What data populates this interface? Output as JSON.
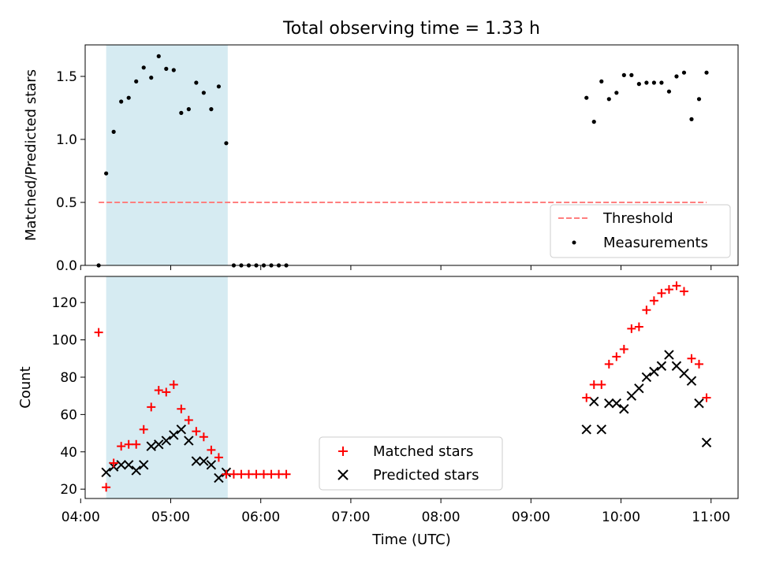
{
  "chart_data": [
    {
      "type": "scatter",
      "title": "Total observing time = 1.33 h",
      "ylabel": "Matched/Predicted stars",
      "xlabel": "",
      "xlim": [
        "04:03",
        "11:18"
      ],
      "ylim": [
        0,
        1.75
      ],
      "yticks": [
        "0.0",
        "0.5",
        "1.0",
        "1.5"
      ],
      "shaded_interval": [
        "04:17",
        "05:38"
      ],
      "threshold": {
        "name": "Threshold",
        "value": 0.5,
        "x_range": [
          "04:12",
          "10:57"
        ],
        "color": "#ff7f7f"
      },
      "series": [
        {
          "name": "Measurements",
          "color": "#000000",
          "x": [
            "04:12",
            "04:17",
            "04:22",
            "04:27",
            "04:32",
            "04:37",
            "04:42",
            "04:47",
            "04:52",
            "04:57",
            "05:02",
            "05:07",
            "05:12",
            "05:17",
            "05:22",
            "05:27",
            "05:32",
            "05:37",
            "05:42",
            "05:47",
            "05:52",
            "05:57",
            "06:02",
            "06:07",
            "06:12",
            "06:17",
            "09:37",
            "09:42",
            "09:47",
            "09:52",
            "09:57",
            "10:02",
            "10:07",
            "10:12",
            "10:17",
            "10:22",
            "10:27",
            "10:32",
            "10:37",
            "10:42",
            "10:47",
            "10:52",
            "10:57"
          ],
          "y": [
            0.0,
            0.73,
            1.06,
            1.3,
            1.33,
            1.46,
            1.57,
            1.49,
            1.66,
            1.56,
            1.55,
            1.21,
            1.24,
            1.45,
            1.37,
            1.24,
            1.42,
            0.97,
            0,
            0,
            0,
            0,
            0,
            0,
            0,
            0,
            1.33,
            1.14,
            1.46,
            1.32,
            1.37,
            1.51,
            1.51,
            1.44,
            1.45,
            1.45,
            1.45,
            1.38,
            1.5,
            1.53,
            1.16,
            1.32,
            1.53
          ]
        }
      ],
      "legend": {
        "placement": "lower-right",
        "entries": [
          "Threshold",
          "Measurements"
        ]
      }
    },
    {
      "type": "scatter",
      "title": "",
      "ylabel": "Count",
      "xlabel": "Time (UTC)",
      "xlim": [
        "04:03",
        "11:18"
      ],
      "ylim": [
        15,
        134
      ],
      "yticks": [
        "20",
        "40",
        "60",
        "80",
        "100",
        "120"
      ],
      "xticks": [
        "04:00",
        "05:00",
        "06:00",
        "07:00",
        "08:00",
        "09:00",
        "10:00",
        "11:00"
      ],
      "shaded_interval": [
        "04:17",
        "05:38"
      ],
      "series": [
        {
          "name": "Matched stars",
          "marker": "plus",
          "color": "#ff0000",
          "x": [
            "04:12",
            "04:17",
            "04:22",
            "04:27",
            "04:32",
            "04:37",
            "04:42",
            "04:47",
            "04:52",
            "04:57",
            "05:02",
            "05:07",
            "05:12",
            "05:17",
            "05:22",
            "05:27",
            "05:32",
            "05:37",
            "05:42",
            "05:47",
            "05:52",
            "05:57",
            "06:02",
            "06:07",
            "06:12",
            "06:17",
            "09:37",
            "09:42",
            "09:47",
            "09:52",
            "09:57",
            "10:02",
            "10:07",
            "10:12",
            "10:17",
            "10:22",
            "10:27",
            "10:32",
            "10:37",
            "10:42",
            "10:47",
            "10:52",
            "10:57"
          ],
          "y": [
            104,
            21,
            34,
            43,
            44,
            44,
            52,
            64,
            73,
            72,
            76,
            63,
            57,
            51,
            48,
            41,
            37,
            28,
            28,
            28,
            28,
            28,
            28,
            28,
            28,
            28,
            69,
            76,
            76,
            87,
            91,
            95,
            106,
            107,
            116,
            121,
            125,
            127,
            129,
            126,
            90,
            87,
            69
          ]
        },
        {
          "name": "Predicted stars",
          "marker": "x",
          "color": "#000000",
          "x": [
            "04:17",
            "04:22",
            "04:27",
            "04:32",
            "04:37",
            "04:42",
            "04:47",
            "04:52",
            "04:57",
            "05:02",
            "05:07",
            "05:12",
            "05:17",
            "05:22",
            "05:27",
            "05:32",
            "05:37",
            "09:37",
            "09:42",
            "09:47",
            "09:52",
            "09:57",
            "10:02",
            "10:07",
            "10:12",
            "10:17",
            "10:22",
            "10:27",
            "10:32",
            "10:37",
            "10:42",
            "10:47",
            "10:52",
            "10:57"
          ],
          "y": [
            29,
            32,
            33,
            33,
            30,
            33,
            43,
            44,
            46,
            49,
            52,
            46,
            35,
            35,
            33,
            26,
            29,
            52,
            67,
            52,
            66,
            66,
            63,
            70,
            74,
            80,
            83,
            86,
            92,
            86,
            82,
            78,
            66,
            45
          ]
        }
      ],
      "legend": {
        "placement": "lower-center",
        "entries": [
          "Matched stars",
          "Predicted stars"
        ]
      }
    }
  ]
}
